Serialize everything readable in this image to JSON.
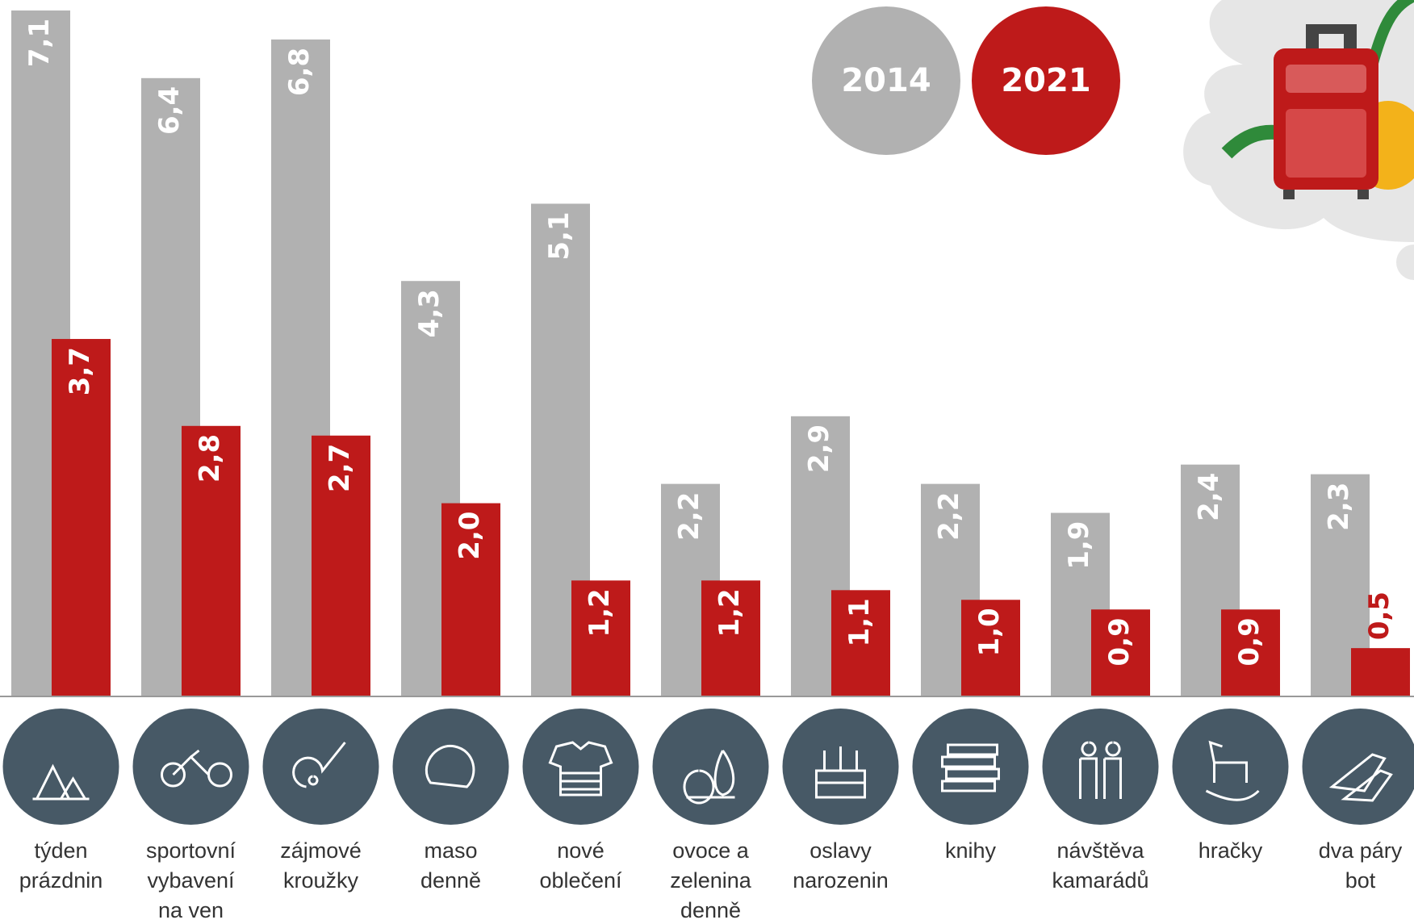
{
  "chart_data": {
    "type": "bar",
    "categories": [
      "týden\nprázdnin",
      "sportovní\nvybavení\nna ven",
      "zájmové\nkroužky",
      "maso\ndenně",
      "nové\noblečení",
      "ovoce a\nzelenina\ndenně",
      "oslavy\nnarozenin",
      "knihy",
      "návštěva\nkamarádů",
      "hračky",
      "dva páry\nbot"
    ],
    "series": [
      {
        "name": "2014",
        "color": "#b1b1b1",
        "values": [
          7.1,
          6.4,
          6.8,
          4.3,
          5.1,
          2.2,
          2.9,
          2.2,
          1.9,
          2.4,
          2.3
        ],
        "value_labels": [
          "7,1",
          "6,4",
          "6,8",
          "4,3",
          "5,1",
          "2,2",
          "2,9",
          "2,2",
          "1,9",
          "2,4",
          "2,3"
        ]
      },
      {
        "name": "2021",
        "color": "#be1a1a",
        "values": [
          3.7,
          2.8,
          2.7,
          2.0,
          1.2,
          1.2,
          1.1,
          1.0,
          0.9,
          0.9,
          0.5
        ],
        "value_labels": [
          "3,7",
          "2,8",
          "2,7",
          "2,0",
          "1,2",
          "1,2",
          "1,1",
          "1,0",
          "0,9",
          "0,9",
          "0,5"
        ]
      }
    ]
  }
}
